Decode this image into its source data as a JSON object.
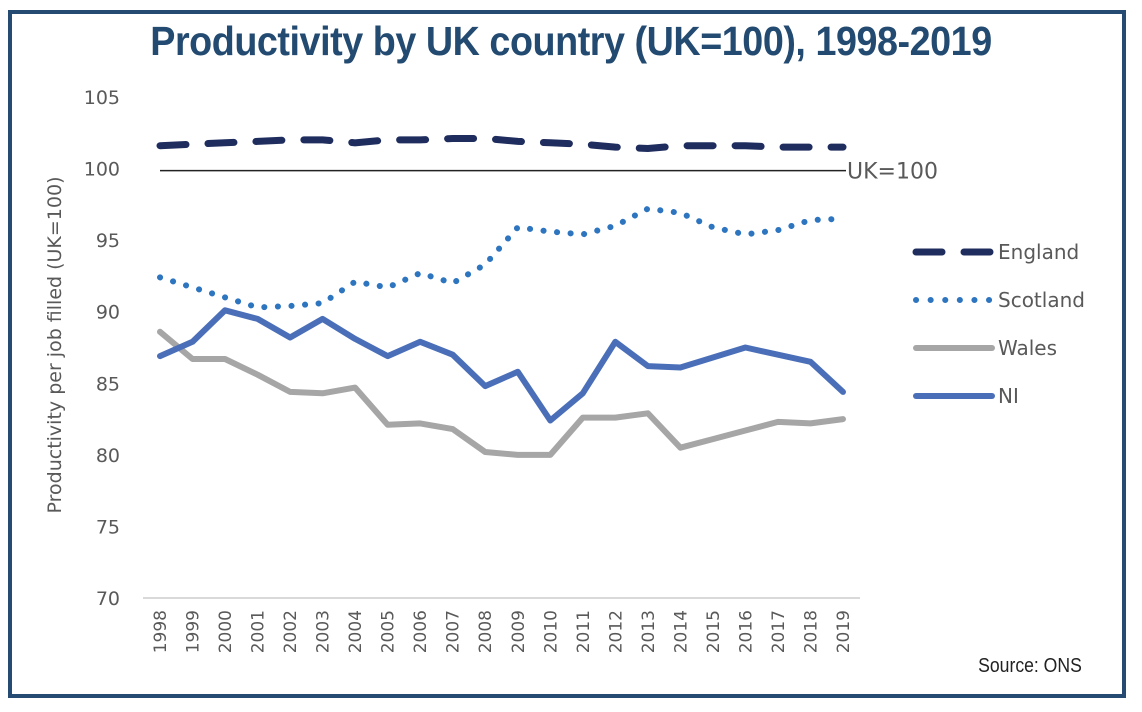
{
  "title": "Productivity by UK country (UK=100), 1998-2019",
  "source": "Source: ONS",
  "colors": {
    "frame": "#264b72",
    "title": "#234a70",
    "england": "#1f2d5e",
    "scotland": "#2e75c0",
    "wales": "#a6a6a6",
    "ni": "#4a6fb8",
    "reference": "#222222",
    "axis": "#d9d9d9"
  },
  "chart_data": {
    "type": "line",
    "title": "Productivity by UK country (UK=100), 1998-2019",
    "xlabel": "",
    "ylabel": "Productivity  per job filled (UK=100)",
    "ylim": [
      70,
      105
    ],
    "yticks": [
      70,
      75,
      80,
      85,
      90,
      95,
      100,
      105
    ],
    "grid": false,
    "legend_position": "right",
    "categories": [
      "1998",
      "1999",
      "2000",
      "2001",
      "2002",
      "2003",
      "2004",
      "2005",
      "2006",
      "2007",
      "2008",
      "2009",
      "2010",
      "2011",
      "2012",
      "2013",
      "2014",
      "2015",
      "2016",
      "2017",
      "2018",
      "2019"
    ],
    "reference_line": {
      "value": 100,
      "label": "UK=100"
    },
    "series": [
      {
        "name": "England",
        "style": "dashed",
        "color_key": "england",
        "values": [
          101.6,
          101.7,
          101.8,
          101.9,
          102.0,
          102.0,
          101.8,
          102.0,
          102.0,
          102.1,
          102.1,
          101.9,
          101.8,
          101.7,
          101.5,
          101.4,
          101.6,
          101.6,
          101.6,
          101.5,
          101.5,
          101.5
        ]
      },
      {
        "name": "Scotland",
        "style": "dotted",
        "color_key": "scotland",
        "values": [
          92.4,
          91.7,
          91.0,
          90.3,
          90.4,
          90.6,
          92.1,
          91.7,
          92.7,
          92.0,
          93.3,
          95.9,
          95.6,
          95.4,
          96.0,
          97.2,
          96.9,
          95.9,
          95.4,
          95.7,
          96.4,
          96.5
        ]
      },
      {
        "name": "Wales",
        "style": "solid",
        "color_key": "wales",
        "values": [
          88.6,
          86.7,
          86.7,
          85.6,
          84.4,
          84.3,
          84.7,
          82.1,
          82.2,
          81.8,
          80.2,
          80.0,
          80.0,
          82.6,
          82.6,
          82.9,
          80.5,
          81.1,
          81.7,
          82.3,
          82.2,
          82.5
        ]
      },
      {
        "name": "NI",
        "style": "solid",
        "color_key": "ni",
        "values": [
          86.9,
          87.9,
          90.1,
          89.5,
          88.2,
          89.5,
          88.1,
          86.9,
          87.9,
          87.0,
          84.8,
          85.8,
          82.4,
          84.3,
          87.9,
          86.2,
          86.1,
          86.8,
          87.5,
          87.0,
          86.5,
          84.4
        ]
      }
    ]
  }
}
